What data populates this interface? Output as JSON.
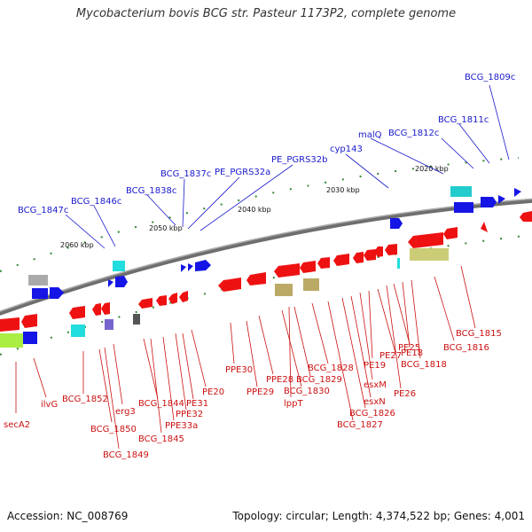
{
  "title": "Mycobacterium bovis BCG str. Pasteur 1173P2, complete genome",
  "footer": {
    "accession": "Accession: NC_008769",
    "summary": "Topology: circular; Length: 4,374,522 bp; Genes: 4,001"
  },
  "colors": {
    "forward_label": "#1a1acc",
    "reverse_label": "#cc1111",
    "backbone": "#777777"
  },
  "kbp_ticks": [
    "2020 kbp",
    "2030 kbp",
    "2040 kbp",
    "2050 kbp",
    "2060 kbp"
  ],
  "forward_labels": [
    "BCG_1809c",
    "BCG_1811c",
    "malQ",
    "BCG_1812c",
    "cyp143",
    "PE_PGRS32b",
    "PE_PGRS32a",
    "BCG_1837c",
    "BCG_1838c",
    "BCG_1846c",
    "BCG_1847c"
  ],
  "reverse_labels": [
    "BCG_1815",
    "BCG_1816",
    "BCG_1818",
    "PE18",
    "PE25",
    "PE26",
    "PE27",
    "PE19",
    "esxM",
    "esxN",
    "BCG_1826",
    "BCG_1827",
    "BCG_1828",
    "BCG_1829",
    "BCG_1830",
    "lppT",
    "PPE28",
    "PPE29",
    "PPE30",
    "PE20",
    "PE31",
    "PPE32",
    "PPE33a",
    "BCG_1844",
    "BCG_1845",
    "erg3",
    "BCG_1849",
    "BCG_1850",
    "BCG_1852",
    "ilvG",
    "secA2"
  ]
}
